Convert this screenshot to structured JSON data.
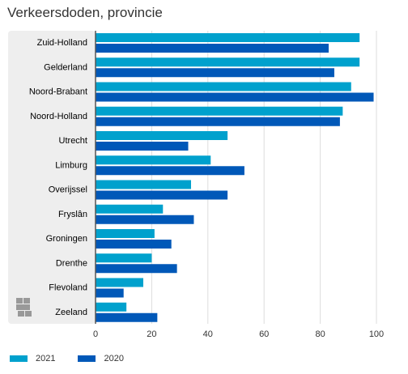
{
  "chart_data": {
    "type": "bar",
    "orientation": "horizontal",
    "title": "Verkeersdoden, provincie",
    "categories": [
      "Zuid-Holland",
      "Gelderland",
      "Noord-Brabant",
      "Noord-Holland",
      "Utrecht",
      "Limburg",
      "Overijssel",
      "Fryslân",
      "Groningen",
      "Drenthe",
      "Flevoland",
      "Zeeland"
    ],
    "series": [
      {
        "name": "2021",
        "color": "#00a1cd",
        "values": [
          94,
          94,
          91,
          88,
          47,
          41,
          34,
          24,
          21,
          20,
          17,
          11
        ]
      },
      {
        "name": "2020",
        "color": "#0058b8",
        "values": [
          83,
          85,
          99,
          87,
          33,
          53,
          47,
          35,
          27,
          29,
          10,
          22
        ]
      }
    ],
    "xlim": [
      0,
      100
    ],
    "xticks": [
      0,
      20,
      40,
      60,
      80,
      100
    ],
    "grid": true,
    "legend_position": "bottom-left"
  },
  "colors": {
    "label_panel": "#eeeeee",
    "gridline": "#dddddd",
    "axis": "#555555"
  },
  "icons": {
    "logo": "cbs-logo-icon"
  }
}
